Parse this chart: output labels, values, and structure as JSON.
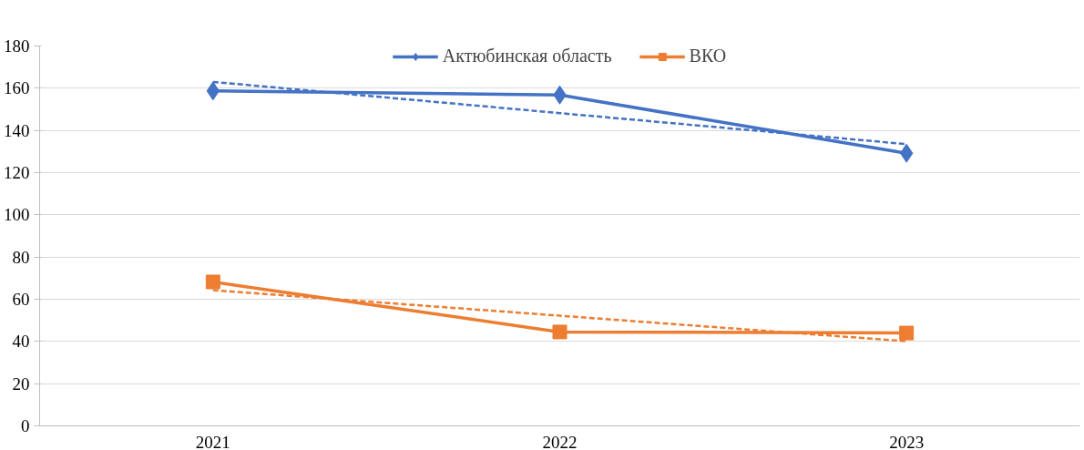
{
  "chart_data": {
    "type": "line",
    "categories": [
      "2021",
      "2022",
      "2023"
    ],
    "series": [
      {
        "name": "Актюбинская область",
        "color": "#4472c4",
        "marker": "diamond",
        "values": [
          158.7,
          156.8,
          129.2
        ]
      },
      {
        "name": "ВКО",
        "color": "#ed7d31",
        "marker": "square",
        "values": [
          68.2,
          44.5,
          44.0
        ]
      },
      {
        "color": "#4472c4",
        "marker": "none",
        "line_style": "dashed",
        "values": [
          163.0,
          148.2,
          133.5
        ]
      },
      {
        "color": "#ed7d31",
        "marker": "none",
        "line_style": "dashed",
        "values": [
          64.3,
          52.2,
          40.1
        ]
      }
    ],
    "ylim": [
      0,
      180
    ],
    "yticks": [
      0,
      20,
      40,
      60,
      80,
      100,
      120,
      140,
      160,
      180
    ],
    "grid": "y",
    "legend": "top",
    "line_style": "solid"
  }
}
